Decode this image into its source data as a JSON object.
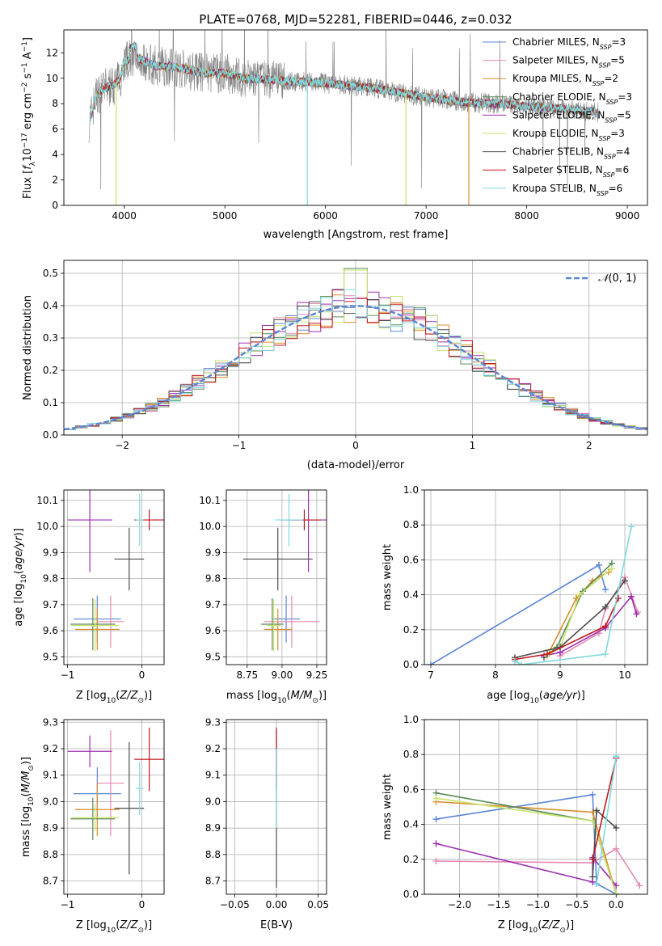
{
  "title": "PLATE=0768, MJD=52281, FIBERID=0446, z=0.032",
  "colors": {
    "Chabrier MILES": "#5b86d6",
    "Salpeter MILES": "#e58ab4",
    "Kroupa MILES": "#d98c2a",
    "Chabrier ELODIE": "#5a8a5a",
    "Salpeter ELODIE": "#9b2fb0",
    "Kroupa ELODIE": "#c8e36b",
    "Chabrier STELIB": "#4d4d4d",
    "Salpeter STELIB": "#c0181f",
    "Kroupa STELIB": "#7fd9dd",
    "data": "#808080"
  },
  "chart_data": [
    {
      "id": "spectrum",
      "type": "line",
      "xlabel": "wavelength [Angstrom, rest frame]",
      "ylabel": "Flux [f_λ 10^-17 erg cm^-2 s^-1 A^-1]",
      "xlim": [
        3400,
        9200
      ],
      "ylim": [
        0,
        13.8
      ],
      "xticks": [
        4000,
        5000,
        6000,
        7000,
        8000,
        9000
      ],
      "yticks": [
        0,
        2,
        4,
        6,
        8,
        10,
        12
      ],
      "legend_position": "top-right",
      "legend": [
        {
          "label": "Chabrier MILES, N",
          "sub": "SSP",
          "tail": "=3",
          "color": "#5b86d6"
        },
        {
          "label": "Salpeter MILES, N",
          "sub": "SSP",
          "tail": "=5",
          "color": "#e58ab4"
        },
        {
          "label": "Kroupa MILES, N",
          "sub": "SSP",
          "tail": "=2",
          "color": "#d98c2a"
        },
        {
          "label": "Chabrier ELODIE, N",
          "sub": "SSP",
          "tail": "=3",
          "color": "#5a8a5a"
        },
        {
          "label": "Salpeter ELODIE, N",
          "sub": "SSP",
          "tail": "=5",
          "color": "#9b2fb0"
        },
        {
          "label": "Kroupa ELODIE, N",
          "sub": "SSP",
          "tail": "=3",
          "color": "#c8e36b"
        },
        {
          "label": "Chabrier STELIB, N",
          "sub": "SSP",
          "tail": "=4",
          "color": "#4d4d4d"
        },
        {
          "label": "Salpeter STELIB, N",
          "sub": "SSP",
          "tail": "=6",
          "color": "#c0181f"
        },
        {
          "label": "Kroupa STELIB, N",
          "sub": "SSP",
          "tail": "=6",
          "color": "#7fd9dd"
        }
      ],
      "continuum": [
        [
          3650,
          6.5
        ],
        [
          3720,
          8.6
        ],
        [
          3800,
          9.2
        ],
        [
          3900,
          9.5
        ],
        [
          3960,
          10.0
        ],
        [
          4000,
          11.3
        ],
        [
          4100,
          11.7
        ],
        [
          4300,
          11.0
        ],
        [
          4500,
          10.9
        ],
        [
          4800,
          10.4
        ],
        [
          5000,
          10.4
        ],
        [
          5200,
          10.0
        ],
        [
          5600,
          9.8
        ],
        [
          6000,
          9.6
        ],
        [
          6500,
          9.2
        ],
        [
          7000,
          8.5
        ],
        [
          7400,
          8.1
        ],
        [
          7700,
          8.0
        ],
        [
          8000,
          7.8
        ],
        [
          8500,
          7.5
        ],
        [
          8700,
          7.3
        ]
      ]
    },
    {
      "id": "residual_hist",
      "type": "line",
      "xlabel": "(data-model)/error",
      "ylabel": "Normed distribution",
      "xlim": [
        -2.5,
        2.5
      ],
      "ylim": [
        0,
        0.54
      ],
      "xticks": [
        -2,
        -1,
        0,
        1,
        2
      ],
      "yticks": [
        0.0,
        0.1,
        0.2,
        0.3,
        0.4,
        0.5
      ],
      "bin_width": 0.1,
      "legend_position": "top-right",
      "reference_label": "N(0,1)"
    },
    {
      "id": "age_vs_Z",
      "type": "scatter",
      "xlabel": "Z [log10(Z/Z⊙)]",
      "ylabel": "age  [log10(age/yr)]",
      "xlim": [
        -1.05,
        0.3
      ],
      "ylim": [
        9.47,
        10.14
      ],
      "xticks": [
        -1,
        0
      ],
      "yticks": [
        9.5,
        9.6,
        9.7,
        9.8,
        9.9,
        10.0,
        10.1
      ],
      "points": [
        {
          "key": "Chabrier MILES",
          "x": -0.6,
          "xerr": 0.32,
          "y": 9.645,
          "yerr": 0.09
        },
        {
          "key": "Salpeter MILES",
          "x": -0.42,
          "xerr": 0.18,
          "y": 9.635,
          "yerr": 0.1
        },
        {
          "key": "Kroupa MILES",
          "x": -0.6,
          "xerr": 0.3,
          "y": 9.605,
          "yerr": 0.08
        },
        {
          "key": "Chabrier ELODIE",
          "x": -0.66,
          "xerr": 0.3,
          "y": 9.625,
          "yerr": 0.1
        },
        {
          "key": "Salpeter ELODIE",
          "x": -0.7,
          "xerr": 0.3,
          "y": 10.025,
          "yerr": 0.2
        },
        {
          "key": "Kroupa ELODIE",
          "x": -0.63,
          "xerr": 0.32,
          "y": 9.62,
          "yerr": 0.1
        },
        {
          "key": "Chabrier STELIB",
          "x": -0.17,
          "xerr": 0.2,
          "y": 9.875,
          "yerr": 0.12
        },
        {
          "key": "Salpeter STELIB",
          "x": 0.1,
          "xerr": 0.2,
          "y": 10.025,
          "yerr": 0.04
        },
        {
          "key": "Kroupa STELIB",
          "x": -0.03,
          "xerr": 0.05,
          "y": 10.025,
          "yerr": 0.1
        }
      ]
    },
    {
      "id": "age_vs_mass",
      "type": "scatter",
      "xlabel": "mass [log10(M/M⊙)]",
      "ylabel": "",
      "xlim": [
        8.6,
        9.32
      ],
      "ylim": [
        9.47,
        10.14
      ],
      "xticks": [
        8.75,
        9.0,
        9.25
      ],
      "yticks": [
        9.5,
        9.6,
        9.7,
        9.8,
        9.9,
        10.0,
        10.1
      ],
      "points": [
        {
          "key": "Chabrier MILES",
          "x": 9.03,
          "xerr": 0.1,
          "y": 9.645,
          "yerr": 0.09
        },
        {
          "key": "Salpeter MILES",
          "x": 9.07,
          "xerr": 0.2,
          "y": 9.635,
          "yerr": 0.1
        },
        {
          "key": "Kroupa MILES",
          "x": 8.97,
          "xerr": 0.1,
          "y": 9.605,
          "yerr": 0.08
        },
        {
          "key": "Chabrier ELODIE",
          "x": 8.93,
          "xerr": 0.08,
          "y": 9.625,
          "yerr": 0.1
        },
        {
          "key": "Salpeter ELODIE",
          "x": 9.19,
          "xerr": 0.2,
          "y": 10.025,
          "yerr": 0.2
        },
        {
          "key": "Kroupa ELODIE",
          "x": 8.94,
          "xerr": 0.05,
          "y": 9.62,
          "yerr": 0.1
        },
        {
          "key": "Chabrier STELIB",
          "x": 8.97,
          "xerr": 0.25,
          "y": 9.875,
          "yerr": 0.12
        },
        {
          "key": "Salpeter STELIB",
          "x": 9.16,
          "xerr": 0.12,
          "y": 10.025,
          "yerr": 0.04
        },
        {
          "key": "Kroupa STELIB",
          "x": 9.05,
          "xerr": 0.1,
          "y": 10.025,
          "yerr": 0.1
        }
      ]
    },
    {
      "id": "weight_vs_age",
      "type": "line",
      "xlabel": "age  [log10(age/yr)]",
      "ylabel": "mass weight",
      "xlim": [
        6.9,
        10.35
      ],
      "ylim": [
        0,
        1.0
      ],
      "xticks": [
        7,
        8,
        9,
        10
      ],
      "yticks": [
        0.0,
        0.2,
        0.4,
        0.6,
        0.8,
        1.0
      ],
      "series": [
        {
          "key": "Chabrier MILES",
          "x": [
            7.0,
            9.6,
            9.7
          ],
          "y": [
            0.0,
            0.57,
            0.43
          ]
        },
        {
          "key": "Salpeter MILES",
          "x": [
            9.0,
            9.6,
            9.7,
            10.0,
            10.2
          ],
          "y": [
            0.05,
            0.18,
            0.32,
            0.5,
            0.3
          ]
        },
        {
          "key": "Kroupa MILES",
          "x": [
            8.8,
            9.25,
            9.5,
            9.75
          ],
          "y": [
            0.05,
            0.38,
            0.48,
            0.53
          ]
        },
        {
          "key": "Chabrier ELODIE",
          "x": [
            8.75,
            8.95,
            9.35,
            9.8
          ],
          "y": [
            0.04,
            0.1,
            0.42,
            0.58
          ]
        },
        {
          "key": "Salpeter ELODIE",
          "x": [
            8.75,
            9.0,
            9.7,
            10.1,
            10.18
          ],
          "y": [
            0.05,
            0.07,
            0.21,
            0.39,
            0.29
          ]
        },
        {
          "key": "Kroupa ELODIE",
          "x": [
            8.8,
            9.0,
            9.3,
            9.8
          ],
          "y": [
            0.05,
            0.1,
            0.4,
            0.55
          ]
        },
        {
          "key": "Chabrier STELIB",
          "x": [
            8.3,
            9.0,
            9.7,
            10.0
          ],
          "y": [
            0.04,
            0.1,
            0.33,
            0.48
          ]
        },
        {
          "key": "Salpeter STELIB",
          "x": [
            8.3,
            8.8,
            9.7,
            9.9
          ],
          "y": [
            0.03,
            0.06,
            0.22,
            0.38
          ]
        },
        {
          "key": "Kroupa STELIB",
          "x": [
            8.3,
            8.4,
            9.7,
            10.1
          ],
          "y": [
            0.02,
            0.0,
            0.06,
            0.79
          ]
        }
      ]
    },
    {
      "id": "mass_vs_Z",
      "type": "scatter",
      "xlabel": "Z [log10(Z/Z⊙)]",
      "ylabel": "mass [log10(M/M⊙)]",
      "xlim": [
        -1.05,
        0.3
      ],
      "ylim": [
        8.65,
        9.31
      ],
      "xticks": [
        -1,
        0
      ],
      "yticks": [
        8.7,
        8.8,
        8.9,
        9.0,
        9.1,
        9.2,
        9.3
      ],
      "points": [
        {
          "key": "Chabrier MILES",
          "x": -0.6,
          "xerr": 0.32,
          "y": 9.03,
          "yerr": 0.1
        },
        {
          "key": "Salpeter MILES",
          "x": -0.42,
          "xerr": 0.18,
          "y": 9.07,
          "yerr": 0.2
        },
        {
          "key": "Kroupa MILES",
          "x": -0.6,
          "xerr": 0.3,
          "y": 8.97,
          "yerr": 0.1
        },
        {
          "key": "Chabrier ELODIE",
          "x": -0.66,
          "xerr": 0.3,
          "y": 8.935,
          "yerr": 0.08
        },
        {
          "key": "Salpeter ELODIE",
          "x": -0.7,
          "xerr": 0.3,
          "y": 9.19,
          "yerr": 0.06
        },
        {
          "key": "Kroupa ELODIE",
          "x": -0.63,
          "xerr": 0.32,
          "y": 8.94,
          "yerr": 0.05
        },
        {
          "key": "Chabrier STELIB",
          "x": -0.17,
          "xerr": 0.2,
          "y": 8.975,
          "yerr": 0.25
        },
        {
          "key": "Salpeter STELIB",
          "x": 0.1,
          "xerr": 0.2,
          "y": 9.16,
          "yerr": 0.12
        },
        {
          "key": "Kroupa STELIB",
          "x": -0.03,
          "xerr": 0.05,
          "y": 9.05,
          "yerr": 0.1
        }
      ]
    },
    {
      "id": "mass_vs_ebv",
      "type": "scatter",
      "xlabel": "E(B-V)",
      "ylabel": "",
      "xlim": [
        -0.06,
        0.06
      ],
      "ylim": [
        8.65,
        9.31
      ],
      "xticks": [
        -0.05,
        0.0,
        0.05
      ],
      "yticks": [
        8.7,
        8.8,
        8.9,
        9.0,
        9.1,
        9.2,
        9.3
      ],
      "points": [
        {
          "key": "Chabrier STELIB",
          "x": 0.0,
          "xerr": 0,
          "y": 8.975,
          "yerr": 0.3
        },
        {
          "key": "Salpeter STELIB",
          "x": 0.0,
          "xerr": 0,
          "y": 9.16,
          "yerr": 0.12
        },
        {
          "key": "Kroupa STELIB",
          "x": 0.0,
          "xerr": 0,
          "y": 9.05,
          "yerr": 0.15
        }
      ]
    },
    {
      "id": "weight_vs_Z",
      "type": "line",
      "xlabel": "Z [log10(Z/Z⊙)]",
      "ylabel": "mass weight",
      "xlim": [
        -2.45,
        0.4
      ],
      "ylim": [
        0,
        1.0
      ],
      "xticks": [
        -2.0,
        -1.5,
        -1.0,
        -0.5,
        0.0
      ],
      "yticks": [
        0.0,
        0.2,
        0.4,
        0.6,
        0.8,
        1.0
      ],
      "series": [
        {
          "key": "Chabrier MILES",
          "x": [
            -2.3,
            -0.3,
            -0.25,
            0.0
          ],
          "y": [
            0.43,
            0.57,
            0.06,
            0.0
          ]
        },
        {
          "key": "Salpeter MILES",
          "x": [
            -2.3,
            -0.3,
            0.0,
            0.3
          ],
          "y": [
            0.19,
            0.18,
            0.26,
            0.05
          ]
        },
        {
          "key": "Kroupa MILES",
          "x": [
            -2.3,
            -0.3,
            0.0
          ],
          "y": [
            0.53,
            0.47,
            0.0
          ]
        },
        {
          "key": "Chabrier ELODIE",
          "x": [
            -2.3,
            -0.3,
            0.0
          ],
          "y": [
            0.58,
            0.42,
            0.0
          ]
        },
        {
          "key": "Salpeter ELODIE",
          "x": [
            -2.3,
            -0.3,
            -0.3,
            0.0
          ],
          "y": [
            0.29,
            0.07,
            0.21,
            0.05
          ]
        },
        {
          "key": "Kroupa ELODIE",
          "x": [
            -2.3,
            -0.3,
            0.0
          ],
          "y": [
            0.55,
            0.42,
            0.0
          ]
        },
        {
          "key": "Chabrier STELIB",
          "x": [
            -0.3,
            -0.25,
            0.0
          ],
          "y": [
            0.1,
            0.48,
            0.38
          ]
        },
        {
          "key": "Salpeter STELIB",
          "x": [
            -0.3,
            0.0
          ],
          "y": [
            0.2,
            0.78
          ]
        },
        {
          "key": "Kroupa STELIB",
          "x": [
            -0.25,
            0.0
          ],
          "y": [
            0.06,
            0.79
          ]
        }
      ]
    }
  ]
}
